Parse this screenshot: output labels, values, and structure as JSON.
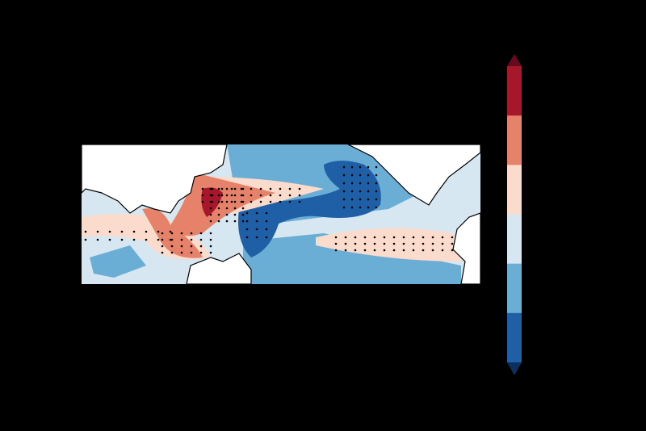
{
  "chart_data": {
    "type": "heatmap",
    "title": "",
    "xlabel": "",
    "ylabel": "",
    "region": "Indo-Pacific",
    "stippling": true,
    "colorbar": {
      "orientation": "vertical",
      "extend": "both",
      "levels_count": 6,
      "colors": [
        "#1f5fa6",
        "#6aaed6",
        "#d6e7f1",
        "#fbdbcb",
        "#e6826a",
        "#a7172c"
      ],
      "under_color": "#0b305f",
      "over_color": "#670a1f",
      "tick_labels": []
    }
  },
  "colors": {
    "background": "#000000",
    "land": "#ffffff",
    "coastline": "#000000"
  }
}
